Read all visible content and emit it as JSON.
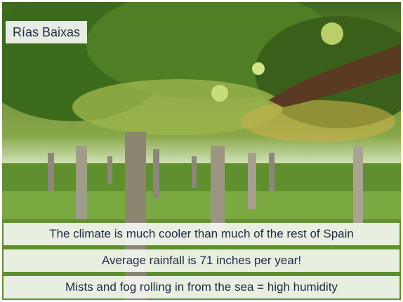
{
  "slide": {
    "title": "Rías Baixas",
    "captions": [
      "The climate is much cooler than much of the rest of Spain",
      "Average rainfall is 71 inches per year!",
      "Mists and fog rolling in from the sea = high humidity"
    ]
  }
}
